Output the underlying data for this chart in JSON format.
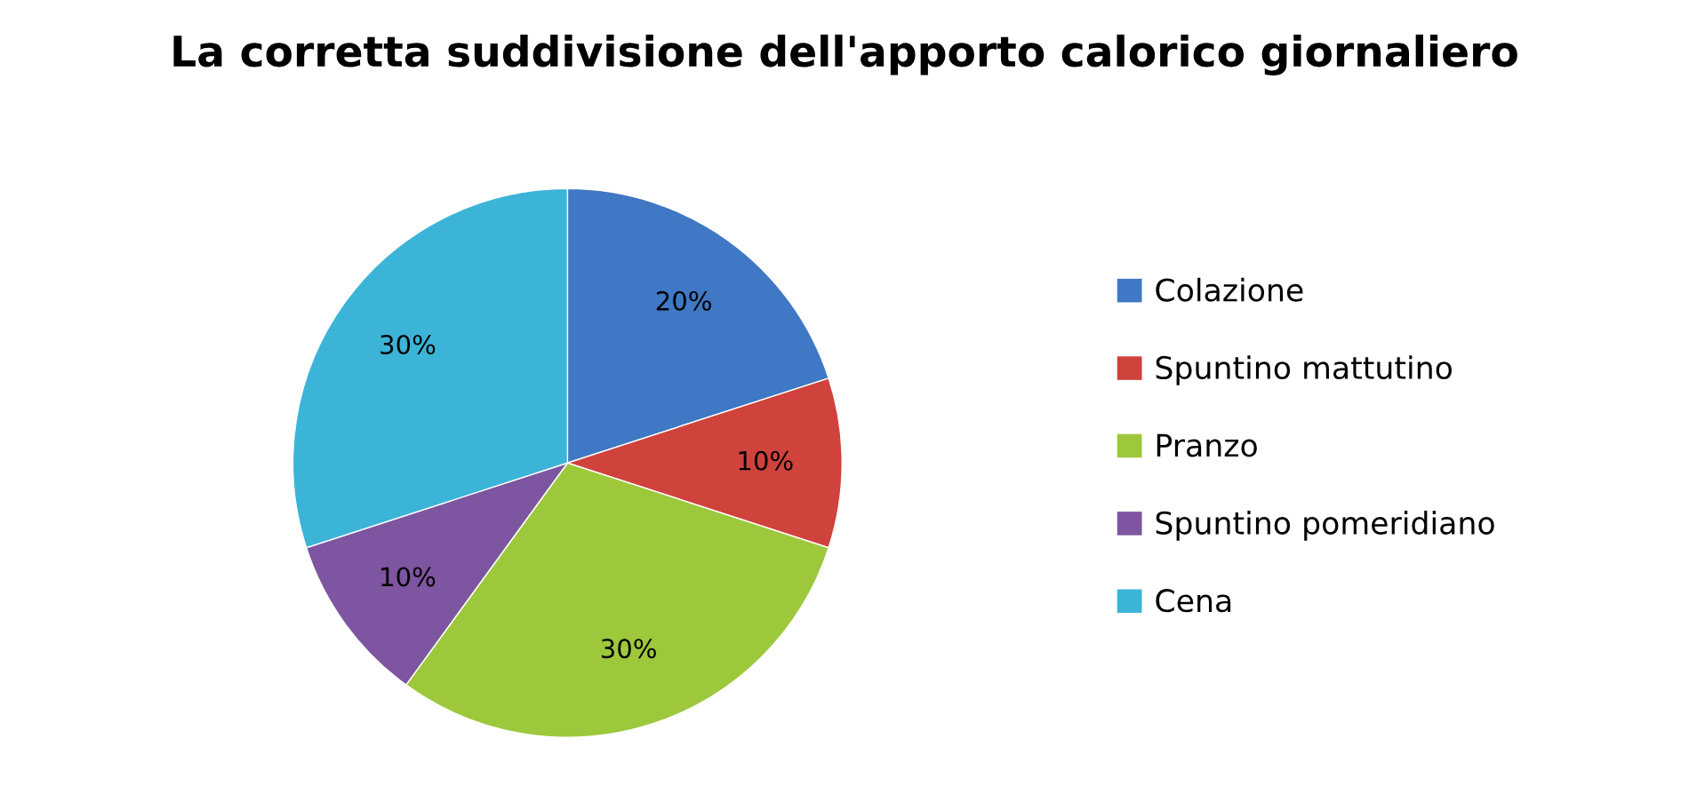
{
  "chart_data": {
    "type": "pie",
    "title": "La corretta suddivisione dell'apporto calorico giornaliero",
    "categories": [
      "Colazione",
      "Spuntino mattutino",
      "Pranzo",
      "Spuntino pomeridiano",
      "Cena"
    ],
    "values": [
      20,
      10,
      30,
      10,
      30
    ],
    "value_labels": [
      "20%",
      "10%",
      "30%",
      "10%",
      "30%"
    ],
    "colors": [
      "#3f78c4",
      "#d0423c",
      "#9dc83c",
      "#7d55a0",
      "#3cb4d8"
    ],
    "legend": "right"
  }
}
